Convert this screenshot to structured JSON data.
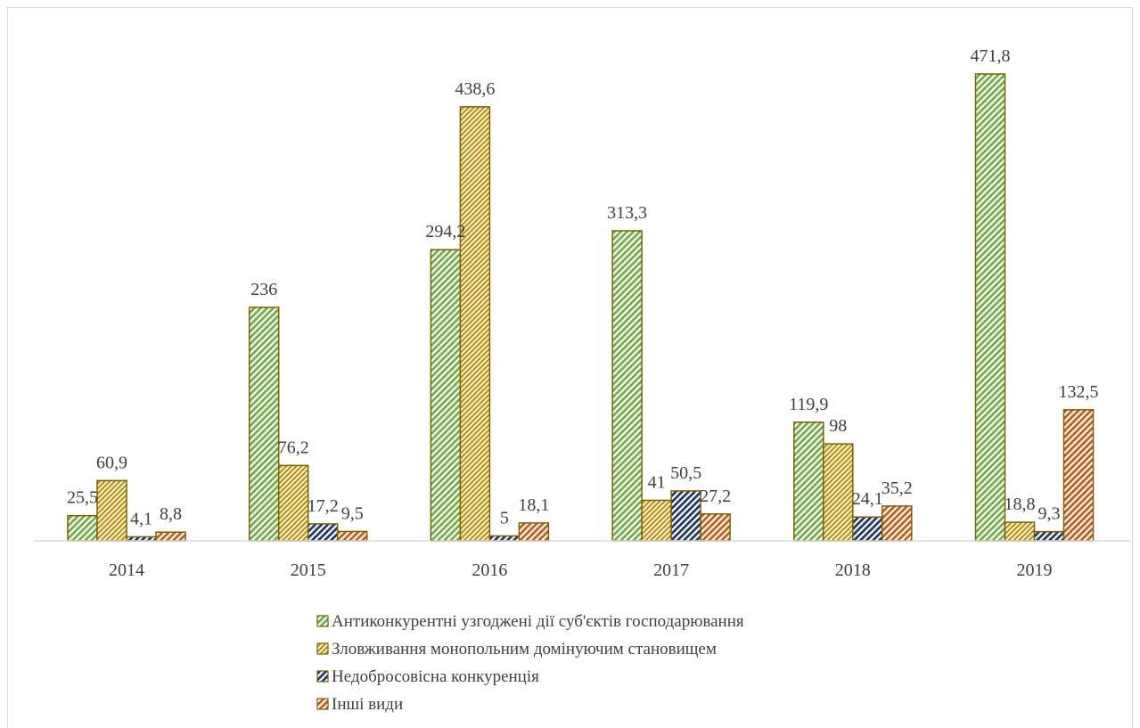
{
  "chart_data": {
    "type": "bar",
    "title": "",
    "xlabel": "",
    "ylabel": "",
    "categories": [
      "2014",
      "2015",
      "2016",
      "2017",
      "2018",
      "2019"
    ],
    "ylim": [
      0,
      500
    ],
    "grid": false,
    "legend_position": "bottom",
    "series": [
      {
        "name": "Антиконкурентні узгоджені дії суб'єктів господарювання",
        "values": [
          25.5,
          236,
          294.2,
          313.3,
          119.9,
          471.8
        ],
        "labels": [
          "25,5",
          "236",
          "294,2",
          "313,3",
          "119,9",
          "471,8"
        ],
        "color": "#70ad47",
        "pattern": "diagonal-stripes"
      },
      {
        "name": "Зловживання монопольним домінуючим становищем",
        "values": [
          60.9,
          76.2,
          438.6,
          41,
          98,
          18.8
        ],
        "labels": [
          "60,9",
          "76,2",
          "438,6",
          "41",
          "98",
          "18,8"
        ],
        "color": "#bf8f00",
        "pattern": "dense-diagonal-stripes"
      },
      {
        "name": "Недобросовісна конкуренція",
        "values": [
          4.1,
          17.2,
          5,
          50.5,
          24.1,
          9.3
        ],
        "labels": [
          "4,1",
          "17,2",
          "5",
          "50,5",
          "24,1",
          "9,3"
        ],
        "color": "#203864",
        "pattern": "diagonal-stripes"
      },
      {
        "name": "Інші види",
        "values": [
          8.8,
          9.5,
          18.1,
          27.2,
          35.2,
          132.5
        ],
        "labels": [
          "8,8",
          "9,5",
          "18,1",
          "27,2",
          "35,2",
          "132,5"
        ],
        "color": "#c55a11",
        "pattern": "diagonal-stripes"
      }
    ],
    "bar_outline_color": "#7f6000"
  }
}
